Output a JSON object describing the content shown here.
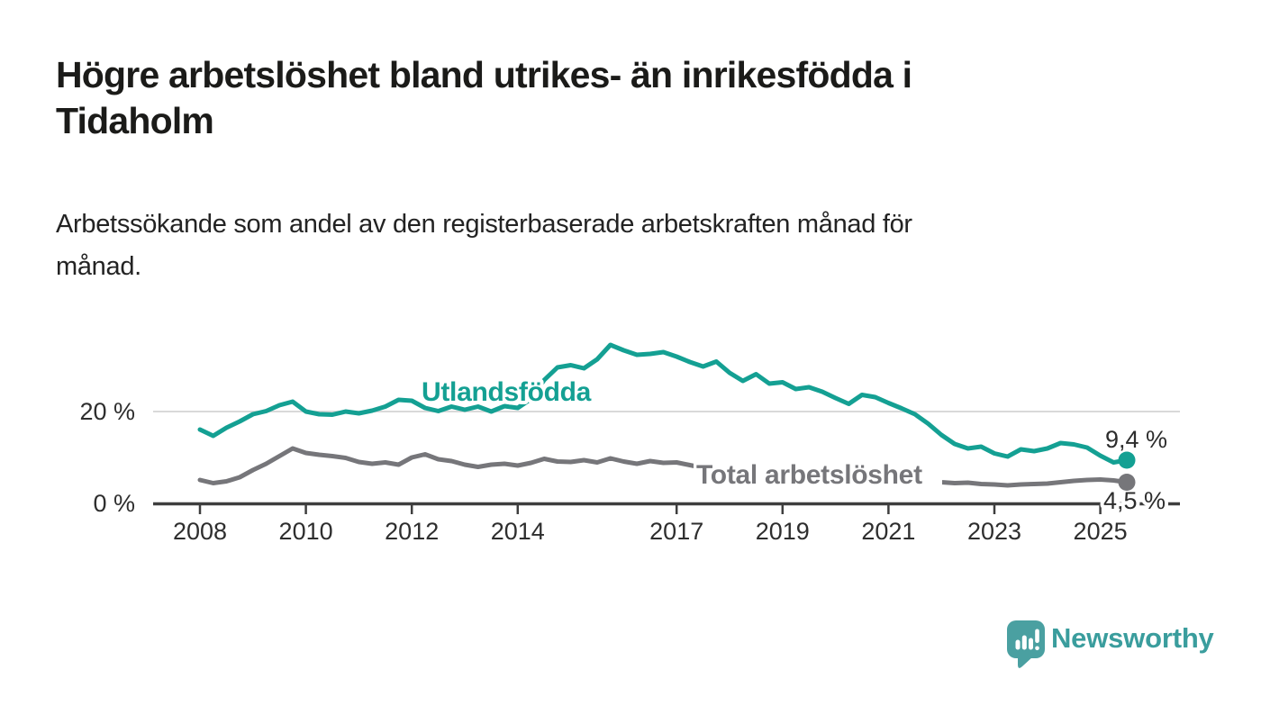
{
  "header": {
    "title_lines": [
      "Högre arbetslöshet bland utrikes- än inrikesfödda i",
      "Tidaholm"
    ],
    "subtitle_lines": [
      "Arbetssökande som andel av den registerbaserade arbetskraften månad för",
      "månad."
    ]
  },
  "chart_data": {
    "type": "line",
    "title": "Högre arbetslöshet bland utrikes- än inrikesfödda i Tidaholm",
    "subtitle": "Arbetssökande som andel av den registerbaserade arbetskraften månad för månad.",
    "unit": "%",
    "x_start": 2008,
    "x_step": 0.25,
    "x_range": [
      2008,
      2025.5
    ],
    "ylim": [
      0,
      36
    ],
    "grid": "horizontal line at 20% only",
    "legend": "inline labels on lines",
    "x_ticks": [
      2008,
      2010,
      2012,
      2014,
      2017,
      2019,
      2021,
      2023,
      2025
    ],
    "y_axis": {
      "ticks": [
        {
          "value": 20,
          "label": "20 %"
        },
        {
          "value": 0,
          "label": "0 %"
        }
      ]
    },
    "series": [
      {
        "name": "Utlandsfödda",
        "color": "#14a093",
        "end_value": 9.4,
        "end_label": "9,4 %",
        "values": [
          16.2,
          14.8,
          16.6,
          18.0,
          19.6,
          20.3,
          21.6,
          22.4,
          20.2,
          19.6,
          19.5,
          20.2,
          19.8,
          20.4,
          21.3,
          22.8,
          22.6,
          21.0,
          20.3,
          21.3,
          20.6,
          21.3,
          20.2,
          21.4,
          21.0,
          23.0,
          27.2,
          30.0,
          30.5,
          29.8,
          31.8,
          35.0,
          33.8,
          32.8,
          33.0,
          33.4,
          32.4,
          31.2,
          30.2,
          31.3,
          28.8,
          27.0,
          28.5,
          26.4,
          26.7,
          25.2,
          25.6,
          24.6,
          23.2,
          21.9,
          23.9,
          23.4,
          22.1,
          20.9,
          19.6,
          17.5,
          15.0,
          13.0,
          12.0,
          12.4,
          10.9,
          10.2,
          11.8,
          11.4,
          12.0,
          13.2,
          12.9,
          12.2,
          10.4,
          8.9,
          9.4
        ]
      },
      {
        "name": "Total arbetslöshet",
        "color": "#76767a",
        "end_value": 4.5,
        "end_label": "4,5 %",
        "values": [
          5.0,
          4.3,
          4.7,
          5.6,
          7.2,
          8.6,
          10.3,
          12.0,
          11.0,
          10.6,
          10.3,
          9.9,
          9.0,
          8.6,
          8.9,
          8.4,
          10.0,
          10.7,
          9.6,
          9.2,
          8.4,
          7.9,
          8.4,
          8.6,
          8.2,
          8.8,
          9.7,
          9.1,
          9.0,
          9.4,
          8.9,
          9.8,
          9.1,
          8.6,
          9.2,
          8.8,
          8.9,
          8.3,
          7.7,
          7.3,
          7.0,
          6.7,
          6.4,
          6.1,
          5.9,
          5.6,
          5.5,
          5.7,
          6.2,
          6.8,
          6.7,
          6.3,
          6.0,
          5.6,
          5.2,
          4.8,
          4.5,
          4.3,
          4.4,
          4.1,
          4.0,
          3.8,
          4.0,
          4.1,
          4.2,
          4.5,
          4.8,
          5.0,
          5.1,
          4.9,
          4.5
        ]
      }
    ]
  },
  "branding": {
    "logo_text": "Newsworthy",
    "logo_icon": "speech-bubble-bar-chart-icon",
    "brand_color": "#3a9d9d",
    "bubble_color": "#4aa0a1"
  }
}
